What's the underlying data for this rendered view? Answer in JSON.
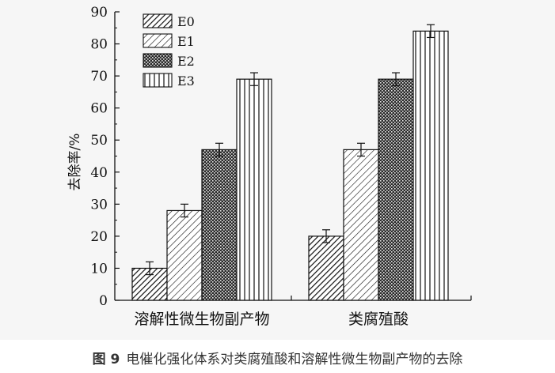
{
  "chart_data": {
    "type": "bar",
    "categories": [
      "溶解性微生物副产物",
      "类腐殖酸"
    ],
    "series": [
      {
        "name": "E0",
        "values": [
          10,
          20
        ],
        "errors": [
          2,
          2
        ],
        "pattern": "hatch-dense"
      },
      {
        "name": "E1",
        "values": [
          28,
          47
        ],
        "errors": [
          2,
          2
        ],
        "pattern": "hatch-light"
      },
      {
        "name": "E2",
        "values": [
          47,
          69
        ],
        "errors": [
          2,
          2
        ],
        "pattern": "crosshatch"
      },
      {
        "name": "E3",
        "values": [
          69,
          84
        ],
        "errors": [
          2,
          2
        ],
        "pattern": "vertical"
      }
    ],
    "ylabel": "去除率/%",
    "xlabel": "",
    "ylim": [
      0,
      90
    ],
    "yticks": [
      0,
      10,
      20,
      30,
      40,
      50,
      60,
      70,
      80,
      90
    ],
    "legend_position": "top-left",
    "grid": false
  },
  "caption": {
    "number": "图 9",
    "text": "电催化强化体系对类腐殖酸和溶解性微生物副产物的去除"
  }
}
